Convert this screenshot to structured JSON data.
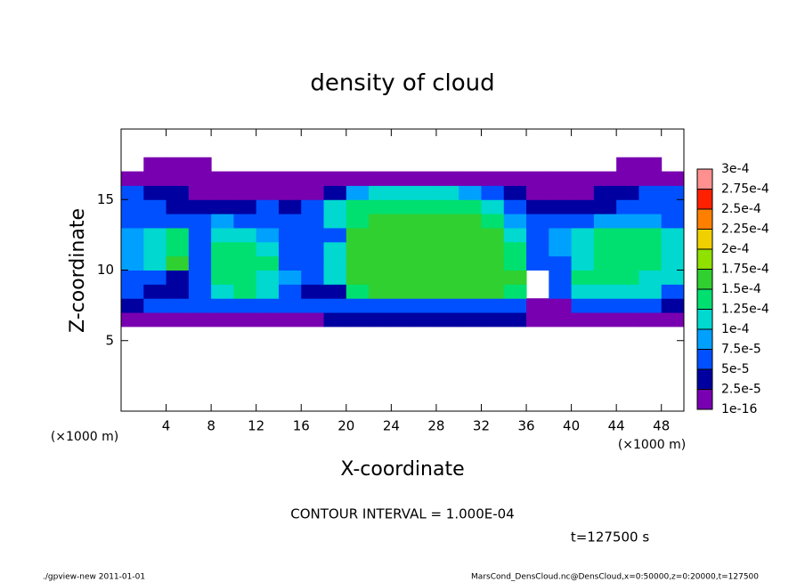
{
  "chart_data": {
    "type": "heatmap",
    "title": "density of cloud",
    "x_label": "X-coordinate",
    "y_label": "Z-coordinate",
    "x_unit": "(×1000 m)",
    "y_unit": "(×1000 m)",
    "contour_note": "CONTOUR INTERVAL = 1.000E-04",
    "time_label": "t=127500 s",
    "footer_left": "./gpview-new   2011-01-01",
    "footer_right": "MarsCond_DensCloud.nc@DensCloud,x=0:50000,z=0:20000,t=127500",
    "xlim": [
      0,
      50
    ],
    "ylim": [
      0,
      20
    ],
    "xticks": [
      4,
      8,
      12,
      16,
      20,
      24,
      28,
      32,
      36,
      40,
      44,
      48
    ],
    "yticks": [
      5,
      10,
      15
    ],
    "x_edges": [
      0,
      2,
      4,
      6,
      8,
      10,
      12,
      14,
      16,
      18,
      20,
      22,
      24,
      26,
      28,
      30,
      32,
      34,
      36,
      38,
      40,
      42,
      44,
      46,
      48,
      50
    ],
    "z_edges": [
      6,
      7,
      8,
      9,
      10,
      11,
      12,
      13,
      14,
      15,
      16,
      17,
      18
    ],
    "values": [
      [
        1e-05,
        2e-05,
        2e-05,
        2e-05,
        2e-05,
        2e-05,
        2e-05,
        2e-05,
        2e-05,
        3e-05,
        3e-05,
        3e-05,
        3e-05,
        3e-05,
        3e-05,
        3e-05,
        3e-05,
        3e-05,
        2e-05,
        1e-05,
        2e-05,
        2e-05,
        2e-05,
        2e-05,
        1e-05
      ],
      [
        4e-05,
        5e-05,
        5e-05,
        5e-05,
        6e-05,
        6e-05,
        6e-05,
        6e-05,
        6e-05,
        6e-05,
        7e-05,
        7e-05,
        7e-05,
        7e-05,
        7e-05,
        7e-05,
        7e-05,
        7e-05,
        1e-05,
        1e-05,
        5e-05,
        5e-05,
        5e-05,
        5e-05,
        4e-05
      ],
      [
        5e-05,
        4e-05,
        3e-05,
        5e-05,
        0.00012,
        0.00013,
        0.00011,
        5e-05,
        3e-05,
        4e-05,
        0.00014,
        0.00015,
        0.00015,
        0.00015,
        0.00015,
        0.00015,
        0.00015,
        0.00014,
        null,
        6e-05,
        0.00011,
        0.00011,
        0.00011,
        0.0001,
        7e-05
      ],
      [
        6e-05,
        5e-05,
        4e-05,
        6e-05,
        0.00013,
        0.00014,
        0.00012,
        8e-05,
        6e-05,
        0.00011,
        0.00015,
        0.00016,
        0.00016,
        0.00016,
        0.00016,
        0.00016,
        0.00016,
        0.00015,
        null,
        7e-05,
        0.00013,
        0.00013,
        0.00013,
        0.00012,
        0.0001
      ],
      [
        8e-05,
        0.00011,
        0.00015,
        5e-05,
        0.00013,
        0.00014,
        0.00013,
        6e-05,
        6e-05,
        0.00012,
        0.00016,
        0.00016,
        0.00017,
        0.00017,
        0.00017,
        0.00016,
        0.00016,
        0.00014,
        5e-05,
        6e-05,
        0.00012,
        0.00013,
        0.00014,
        0.00014,
        0.00012
      ],
      [
        9e-05,
        0.00012,
        0.00014,
        6e-05,
        0.00013,
        0.00014,
        0.00012,
        5e-05,
        7e-05,
        0.00012,
        0.00016,
        0.00016,
        0.00017,
        0.00017,
        0.00017,
        0.00016,
        0.00016,
        0.00013,
        6e-05,
        8e-05,
        0.00012,
        0.00014,
        0.00014,
        0.00014,
        0.00012
      ],
      [
        8e-05,
        0.0001,
        0.00013,
        6e-05,
        0.00011,
        0.00011,
        9e-05,
        5e-05,
        6e-05,
        7e-05,
        0.00015,
        0.00016,
        0.00016,
        0.00016,
        0.00016,
        0.00015,
        0.00015,
        0.00011,
        7e-05,
        9e-05,
        0.00012,
        0.00013,
        0.00013,
        0.00013,
        0.0001
      ],
      [
        7e-05,
        7e-05,
        6e-05,
        6e-05,
        8e-05,
        7e-05,
        6e-05,
        6e-05,
        7e-05,
        0.0001,
        0.00014,
        0.00015,
        0.00015,
        0.00015,
        0.00015,
        0.00015,
        0.00013,
        9e-05,
        6e-05,
        6e-05,
        7e-05,
        8e-05,
        8e-05,
        8e-05,
        7e-05
      ],
      [
        6e-05,
        5e-05,
        4e-05,
        3e-05,
        3e-05,
        4e-05,
        5e-05,
        4e-05,
        7e-05,
        0.00011,
        0.00013,
        0.00014,
        0.00014,
        0.00014,
        0.00014,
        0.00013,
        0.00011,
        6e-05,
        4e-05,
        3e-05,
        3e-05,
        4e-05,
        5e-05,
        6e-05,
        7e-05
      ],
      [
        5e-05,
        4e-05,
        3e-05,
        2e-05,
        2e-05,
        2e-05,
        2e-05,
        2e-05,
        2e-05,
        3e-05,
        8e-05,
        0.00011,
        0.00012,
        0.00012,
        0.00011,
        9e-05,
        6e-05,
        3e-05,
        2e-05,
        2e-05,
        2e-05,
        3e-05,
        4e-05,
        5e-05,
        6e-05
      ],
      [
        1e-05,
        1e-05,
        1e-05,
        1e-05,
        1e-05,
        1e-05,
        1e-05,
        1e-05,
        1e-05,
        1e-05,
        1e-05,
        1e-05,
        1e-05,
        1e-05,
        1e-05,
        1e-05,
        1e-05,
        1e-05,
        1e-05,
        1e-05,
        1e-05,
        1e-05,
        1e-05,
        1e-05,
        1e-05
      ],
      [
        null,
        1e-05,
        1e-05,
        1e-05,
        null,
        null,
        null,
        null,
        null,
        null,
        null,
        null,
        null,
        null,
        null,
        null,
        null,
        null,
        null,
        null,
        null,
        null,
        1e-05,
        1e-05,
        null
      ]
    ],
    "levels": [
      {
        "value": 1e-16,
        "label": "1e-16"
      },
      {
        "value": 2.5e-05,
        "label": "2.5e-5"
      },
      {
        "value": 5e-05,
        "label": "5e-5"
      },
      {
        "value": 7.5e-05,
        "label": "7.5e-5"
      },
      {
        "value": 0.0001,
        "label": "1e-4"
      },
      {
        "value": 0.000125,
        "label": "1.25e-4"
      },
      {
        "value": 0.00015,
        "label": "1.5e-4"
      },
      {
        "value": 0.000175,
        "label": "1.75e-4"
      },
      {
        "value": 0.0002,
        "label": "2e-4"
      },
      {
        "value": 0.000225,
        "label": "2.25e-4"
      },
      {
        "value": 0.00025,
        "label": "2.5e-4"
      },
      {
        "value": 0.000275,
        "label": "2.75e-4"
      },
      {
        "value": 0.0003,
        "label": "3e-4"
      }
    ],
    "colors": [
      "#7800b0",
      "#0000a0",
      "#0050ff",
      "#00a0ff",
      "#00d8d0",
      "#00e070",
      "#30d030",
      "#90e000",
      "#f0d000",
      "#ff8000",
      "#ff2000",
      "#ff9090"
    ]
  }
}
